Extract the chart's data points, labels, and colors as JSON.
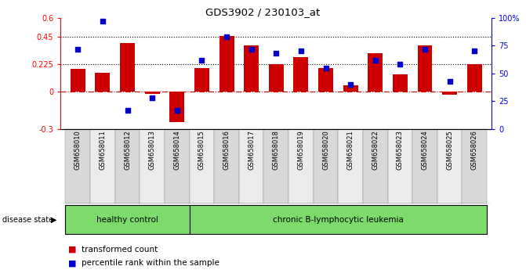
{
  "title": "GDS3902 / 230103_at",
  "categories": [
    "GSM658010",
    "GSM658011",
    "GSM658012",
    "GSM658013",
    "GSM658014",
    "GSM658015",
    "GSM658016",
    "GSM658017",
    "GSM658018",
    "GSM658019",
    "GSM658020",
    "GSM658021",
    "GSM658022",
    "GSM658023",
    "GSM658024",
    "GSM658025",
    "GSM658026"
  ],
  "bar_values": [
    0.185,
    0.155,
    0.395,
    -0.015,
    -0.245,
    0.195,
    0.455,
    0.375,
    0.225,
    0.285,
    0.195,
    0.055,
    0.315,
    0.145,
    0.375,
    -0.025,
    0.225
  ],
  "dot_values": [
    72,
    97,
    17,
    28,
    17,
    62,
    83,
    72,
    68,
    70,
    55,
    40,
    62,
    58,
    72,
    43,
    70
  ],
  "ylim_left": [
    -0.3,
    0.6
  ],
  "ylim_right": [
    0,
    100
  ],
  "yticks_left": [
    -0.3,
    0,
    0.225,
    0.45,
    0.6
  ],
  "yticks_right": [
    0,
    25,
    50,
    75,
    100
  ],
  "ytick_labels_left": [
    "-0.3",
    "0",
    "0.225",
    "0.45",
    "0.6"
  ],
  "ytick_labels_right": [
    "0",
    "25",
    "50",
    "75",
    "100%"
  ],
  "hlines": [
    0.45,
    0.225
  ],
  "bar_color": "#cc0000",
  "dot_color": "#0000cc",
  "zero_line_color": "#cc0000",
  "healthy_count": 5,
  "group_label_healthy": "healthy control",
  "group_label_chronic": "chronic B-lymphocytic leukemia",
  "disease_state_label": "disease state",
  "legend_items": [
    {
      "label": "transformed count",
      "color": "#cc0000"
    },
    {
      "label": "percentile rank within the sample",
      "color": "#0000cc"
    }
  ],
  "background_color": "#ffffff",
  "label_bg_even": "#d8d8d8",
  "label_bg_odd": "#ebebeb",
  "group_bg": "#7cdb6a"
}
